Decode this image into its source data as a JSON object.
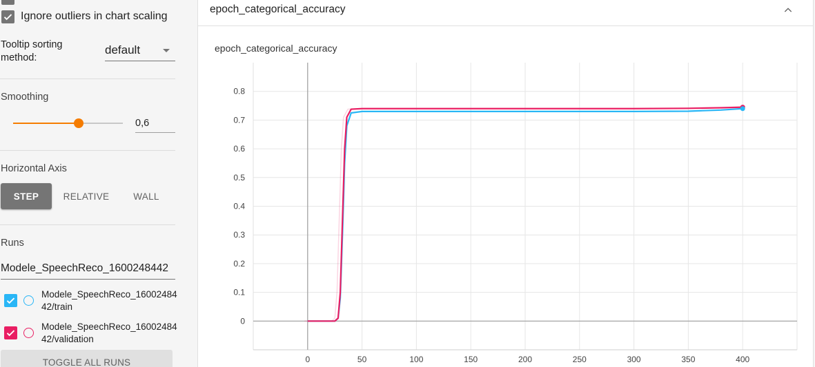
{
  "sidebar": {
    "ignore_outliers_label": "Ignore outliers in chart scaling",
    "tooltip_sorting": {
      "label": "Tooltip sorting method:",
      "value": "default"
    },
    "smoothing": {
      "label": "Smoothing",
      "value_text": "0,6",
      "value": 0.6
    },
    "horizontal_axis": {
      "label": "Horizontal Axis",
      "options": [
        "STEP",
        "RELATIVE",
        "WALL"
      ],
      "selected": "STEP"
    },
    "runs": {
      "label": "Runs",
      "filter_value": "Modele_SpeechReco_1600248442",
      "items": [
        {
          "name": "Modele_SpeechReco_1600248442/train",
          "checked": true,
          "color": "#29b6f6"
        },
        {
          "name": "Modele_SpeechReco_1600248442/validation",
          "checked": true,
          "color": "#e91e63"
        }
      ],
      "toggle_label": "TOGGLE ALL RUNS"
    }
  },
  "card": {
    "title": "epoch_categorical_accuracy",
    "chart_title": "epoch_categorical_accuracy"
  },
  "colors": {
    "accent": "#f57c00",
    "train": "#29b6f6",
    "validation": "#e91e63"
  },
  "chart_data": {
    "type": "line",
    "title": "epoch_categorical_accuracy",
    "xlabel": "",
    "ylabel": "",
    "xlim": [
      -50,
      450
    ],
    "ylim": [
      -0.1,
      0.9
    ],
    "x_ticks": [
      0,
      50,
      100,
      150,
      200,
      250,
      300,
      350,
      400
    ],
    "y_ticks": [
      "0",
      "0.1",
      "0.2",
      "0.3",
      "0.4",
      "0.5",
      "0.6",
      "0.7",
      "0.8"
    ],
    "grid": true,
    "series": [
      {
        "name": "Modele_SpeechReco_1600248442/train",
        "color": "#29b6f6",
        "x": [
          0,
          25,
          28,
          30,
          32,
          34,
          36,
          40,
          50,
          100,
          200,
          300,
          350,
          380,
          400
        ],
        "y": [
          0,
          0,
          0.01,
          0.08,
          0.3,
          0.55,
          0.68,
          0.725,
          0.73,
          0.73,
          0.73,
          0.73,
          0.731,
          0.735,
          0.74
        ]
      },
      {
        "name": "Modele_SpeechReco_1600248442/validation",
        "color": "#e91e63",
        "x": [
          0,
          25,
          28,
          30,
          32,
          34,
          36,
          40,
          50,
          100,
          200,
          300,
          350,
          380,
          400
        ],
        "y": [
          0,
          0,
          0.01,
          0.1,
          0.35,
          0.6,
          0.71,
          0.738,
          0.74,
          0.74,
          0.74,
          0.74,
          0.741,
          0.743,
          0.745
        ]
      }
    ]
  }
}
